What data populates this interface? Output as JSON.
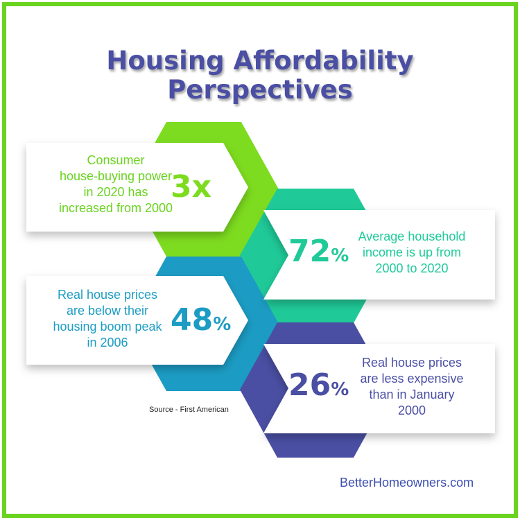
{
  "title_line1": "Housing Affordability",
  "title_line2": "Perspectives",
  "stats": [
    {
      "value": "3x",
      "suffix": "",
      "text": [
        "Consumer",
        "house-buying power",
        "in 2020 has",
        "increased from 2000"
      ]
    },
    {
      "value": "72",
      "suffix": "%",
      "text": [
        "Average household",
        "income is up from",
        "2000 to 2020"
      ]
    },
    {
      "value": "48",
      "suffix": "%",
      "text": [
        "Real house prices",
        "are below their",
        "housing boom peak",
        "in 2006"
      ]
    },
    {
      "value": "26",
      "suffix": "%",
      "text": [
        "Real house prices",
        "are less expensive",
        "than in January",
        "2000"
      ]
    }
  ],
  "source": "Source - First American",
  "brand": "BetterHomeowners.com",
  "colors": {
    "border": "#6ad320",
    "green": "#7ddc1f",
    "teal": "#1fca98",
    "blue": "#1c9cc4",
    "indigo": "#4a4fa3",
    "title": "#4a4fa3"
  }
}
